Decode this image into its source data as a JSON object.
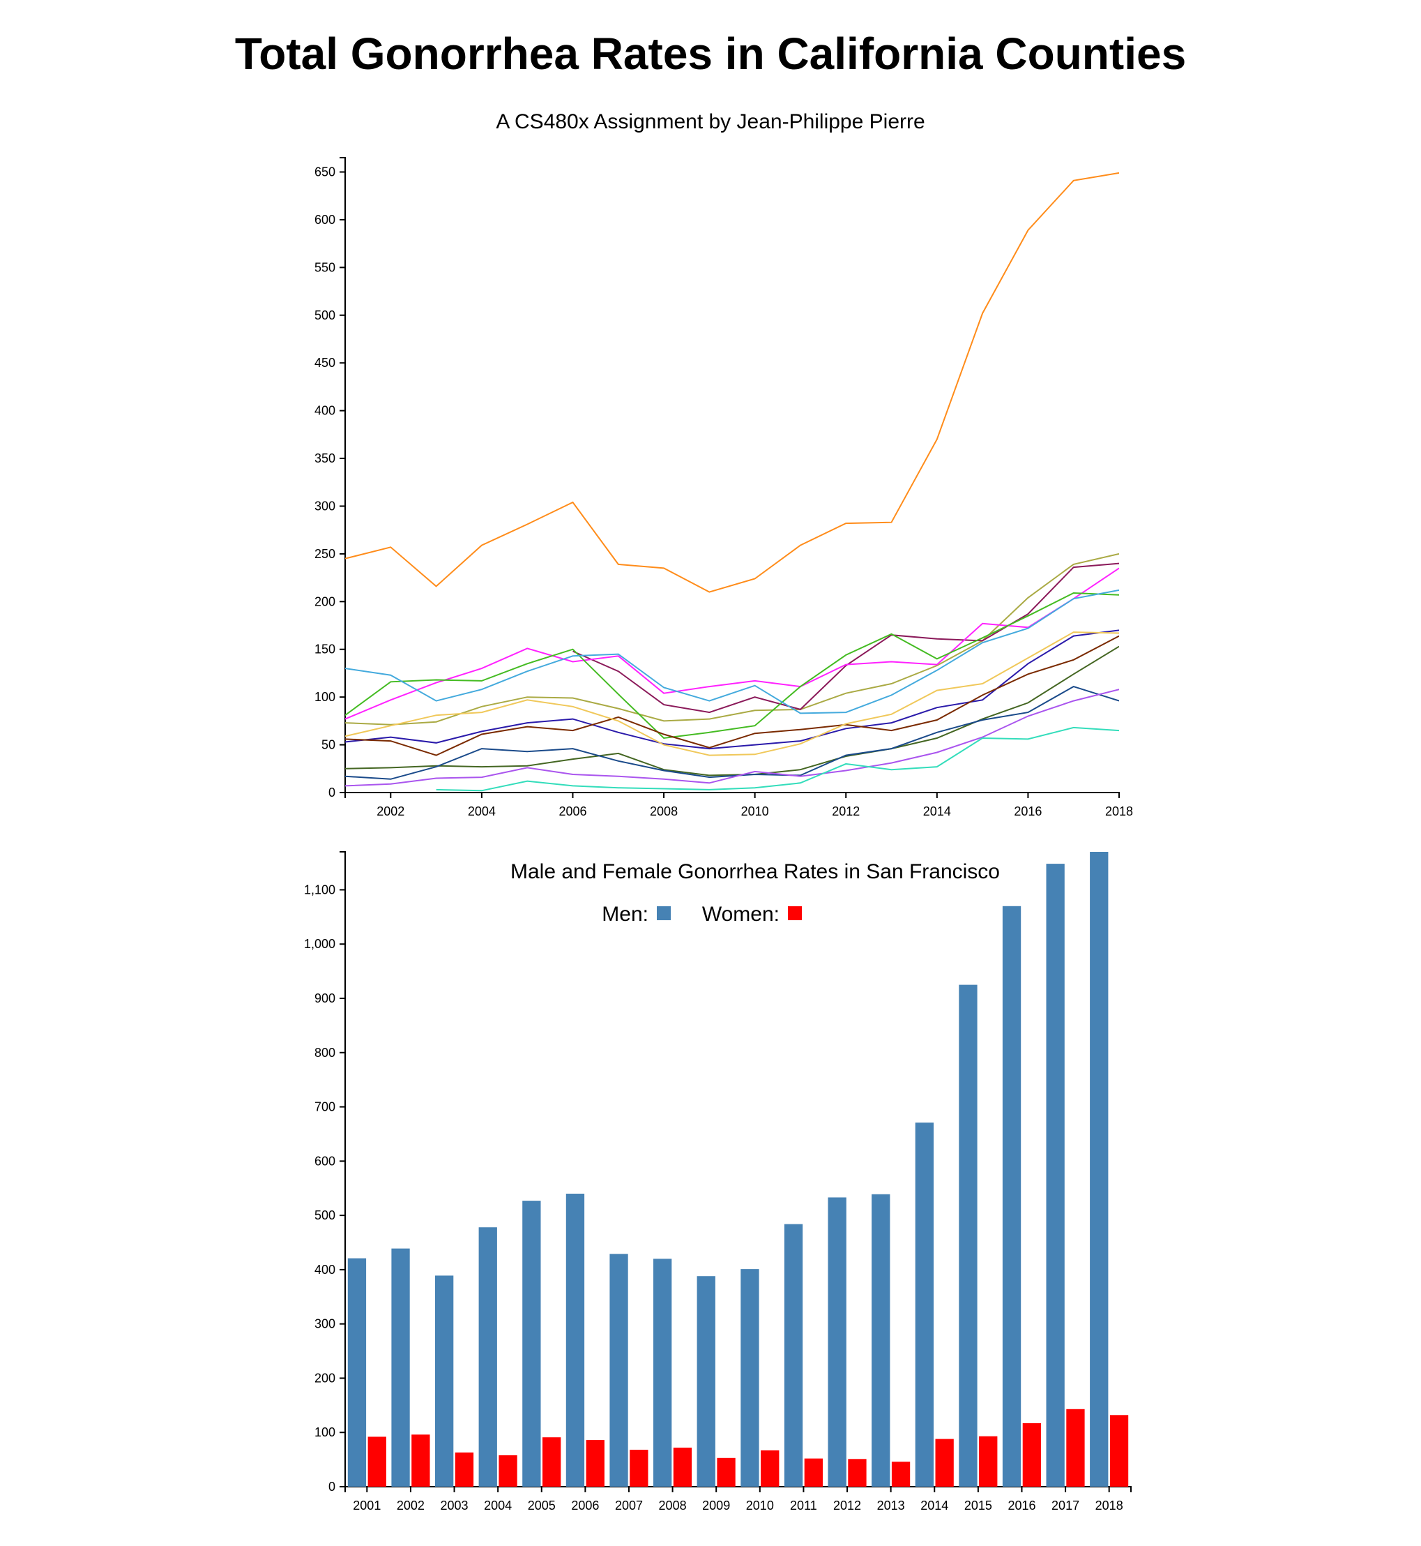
{
  "title": "Total Gonorrhea Rates in California Counties",
  "subtitle": "A CS480x Assignment by Jean-Philippe Pierre",
  "chart_data": [
    {
      "type": "line",
      "title": "",
      "xlabel": "",
      "ylabel": "",
      "xlim": [
        2001,
        2018
      ],
      "ylim": [
        0,
        665
      ],
      "x_ticks": [
        2002,
        2004,
        2006,
        2008,
        2010,
        2012,
        2014,
        2016,
        2018
      ],
      "y_ticks": [
        0,
        50,
        100,
        150,
        200,
        250,
        300,
        350,
        400,
        450,
        500,
        550,
        600,
        650
      ],
      "grid": false,
      "series": [
        {
          "color": "#ff8c1a",
          "x": [
            2001,
            2002,
            2003,
            2004,
            2005,
            2006,
            2007,
            2008,
            2009,
            2010,
            2011,
            2012,
            2013,
            2014,
            2015,
            2016,
            2017,
            2018
          ],
          "values": [
            245,
            257,
            216,
            259,
            281,
            304,
            239,
            235,
            210,
            224,
            259,
            282,
            283,
            370,
            502,
            589,
            641,
            649
          ]
        },
        {
          "color": "#aaaa44",
          "x": [
            2001,
            2002,
            2003,
            2004,
            2005,
            2006,
            2007,
            2008,
            2009,
            2010,
            2011,
            2012,
            2013,
            2014,
            2015,
            2016,
            2017,
            2018
          ],
          "values": [
            73,
            71,
            74,
            90,
            100,
            99,
            88,
            75,
            77,
            86,
            87,
            104,
            114,
            133,
            159,
            204,
            239,
            250
          ]
        },
        {
          "color": "#8b1a5a",
          "x": [
            2006,
            2007,
            2008,
            2009,
            2010,
            2011,
            2012,
            2013,
            2014,
            2015,
            2016,
            2017,
            2018
          ],
          "values": [
            148,
            127,
            92,
            84,
            100,
            87,
            133,
            165,
            161,
            159,
            187,
            236,
            240
          ]
        },
        {
          "color": "#ff22ff",
          "x": [
            2001,
            2002,
            2003,
            2004,
            2005,
            2006,
            2007,
            2008,
            2009,
            2010,
            2011,
            2012,
            2013,
            2014,
            2015,
            2016,
            2017,
            2018
          ],
          "values": [
            77,
            97,
            115,
            130,
            151,
            137,
            143,
            104,
            111,
            117,
            111,
            134,
            137,
            134,
            177,
            173,
            203,
            235
          ]
        },
        {
          "color": "#44bb22",
          "x": [
            2001,
            2002,
            2003,
            2004,
            2005,
            2006,
            2007,
            2008,
            2009,
            2010,
            2011,
            2012,
            2013,
            2014,
            2015,
            2016,
            2017,
            2018
          ],
          "values": [
            81,
            116,
            118,
            117,
            135,
            150,
            103,
            57,
            63,
            70,
            111,
            144,
            166,
            140,
            162,
            185,
            209,
            207
          ]
        },
        {
          "color": "#44aadd",
          "x": [
            2001,
            2002,
            2003,
            2004,
            2005,
            2006,
            2007,
            2008,
            2009,
            2010,
            2011,
            2012,
            2013,
            2014,
            2015,
            2016,
            2017,
            2018
          ],
          "values": [
            130,
            123,
            96,
            108,
            127,
            143,
            145,
            110,
            96,
            112,
            83,
            84,
            102,
            128,
            157,
            172,
            203,
            212
          ]
        },
        {
          "color": "#2a1aaa",
          "x": [
            2001,
            2002,
            2003,
            2004,
            2005,
            2006,
            2007,
            2008,
            2009,
            2010,
            2011,
            2012,
            2013,
            2014,
            2015,
            2016,
            2017,
            2018
          ],
          "values": [
            53,
            58,
            52,
            64,
            73,
            77,
            63,
            51,
            46,
            50,
            54,
            67,
            73,
            89,
            97,
            135,
            164,
            170
          ]
        },
        {
          "color": "#7a2a00",
          "x": [
            2001,
            2002,
            2003,
            2004,
            2005,
            2006,
            2007,
            2008,
            2009,
            2010,
            2011,
            2012,
            2013,
            2014,
            2015,
            2016,
            2017,
            2018
          ],
          "values": [
            56,
            54,
            39,
            61,
            69,
            65,
            79,
            61,
            47,
            62,
            66,
            71,
            65,
            76,
            102,
            124,
            139,
            164
          ]
        },
        {
          "color": "#f0c85a",
          "x": [
            2001,
            2002,
            2003,
            2004,
            2005,
            2006,
            2007,
            2008,
            2009,
            2010,
            2011,
            2012,
            2013,
            2014,
            2015,
            2016,
            2017,
            2018
          ],
          "values": [
            59,
            70,
            81,
            84,
            97,
            90,
            75,
            50,
            39,
            40,
            51,
            72,
            82,
            107,
            114,
            141,
            168,
            167
          ]
        },
        {
          "color": "#446622",
          "x": [
            2001,
            2002,
            2003,
            2004,
            2005,
            2006,
            2007,
            2008,
            2009,
            2010,
            2011,
            2012,
            2013,
            2014,
            2015,
            2016,
            2017,
            2018
          ],
          "values": [
            25,
            26,
            28,
            27,
            28,
            35,
            41,
            24,
            18,
            19,
            24,
            38,
            46,
            57,
            77,
            94,
            124,
            153
          ]
        },
        {
          "color": "#1a4a8a",
          "x": [
            2001,
            2002,
            2003,
            2004,
            2005,
            2006,
            2007,
            2008,
            2009,
            2010,
            2011,
            2012,
            2013,
            2014,
            2015,
            2016,
            2017,
            2018
          ],
          "values": [
            17,
            14,
            27,
            46,
            43,
            46,
            33,
            23,
            16,
            19,
            18,
            39,
            46,
            63,
            76,
            84,
            111,
            96
          ]
        },
        {
          "color": "#aa55ee",
          "x": [
            2001,
            2002,
            2003,
            2004,
            2005,
            2006,
            2007,
            2008,
            2009,
            2010,
            2011,
            2012,
            2013,
            2014,
            2015,
            2016,
            2017,
            2018
          ],
          "values": [
            7,
            9,
            15,
            16,
            26,
            19,
            17,
            14,
            10,
            22,
            17,
            23,
            31,
            42,
            58,
            80,
            96,
            108
          ]
        },
        {
          "color": "#33ddbb",
          "x": [
            2003,
            2004,
            2005,
            2006,
            2007,
            2008,
            2009,
            2010,
            2011,
            2012,
            2013,
            2014,
            2015,
            2016,
            2017,
            2018
          ],
          "values": [
            3,
            2,
            12,
            7,
            5,
            4,
            3,
            5,
            10,
            30,
            24,
            27,
            57,
            56,
            68,
            65
          ]
        }
      ]
    },
    {
      "type": "bar",
      "title": "Male and Female Gonorrhea Rates in San Francisco",
      "xlabel": "",
      "ylabel": "",
      "ylim": [
        0,
        1170
      ],
      "y_ticks": [
        0,
        100,
        200,
        300,
        400,
        500,
        600,
        700,
        800,
        900,
        1000,
        1100
      ],
      "y_tick_labels": [
        "0",
        "100",
        "200",
        "300",
        "400",
        "500",
        "600",
        "700",
        "800",
        "900",
        "1,000",
        "1,100"
      ],
      "legend_position": "top-center",
      "categories": [
        "2001",
        "2002",
        "2003",
        "2004",
        "2005",
        "2006",
        "2007",
        "2008",
        "2009",
        "2010",
        "2011",
        "2012",
        "2013",
        "2014",
        "2015",
        "2016",
        "2017",
        "2018"
      ],
      "series": [
        {
          "name": "Men:",
          "color": "#4682b4",
          "values": [
            421,
            439,
            389,
            478,
            527,
            540,
            429,
            420,
            388,
            401,
            484,
            533,
            539,
            671,
            925,
            1070,
            1148,
            1170
          ]
        },
        {
          "name": "Women:",
          "color": "#ff0000",
          "values": [
            92,
            96,
            63,
            58,
            91,
            86,
            68,
            72,
            53,
            67,
            52,
            51,
            46,
            88,
            93,
            117,
            143,
            132
          ]
        }
      ]
    }
  ]
}
